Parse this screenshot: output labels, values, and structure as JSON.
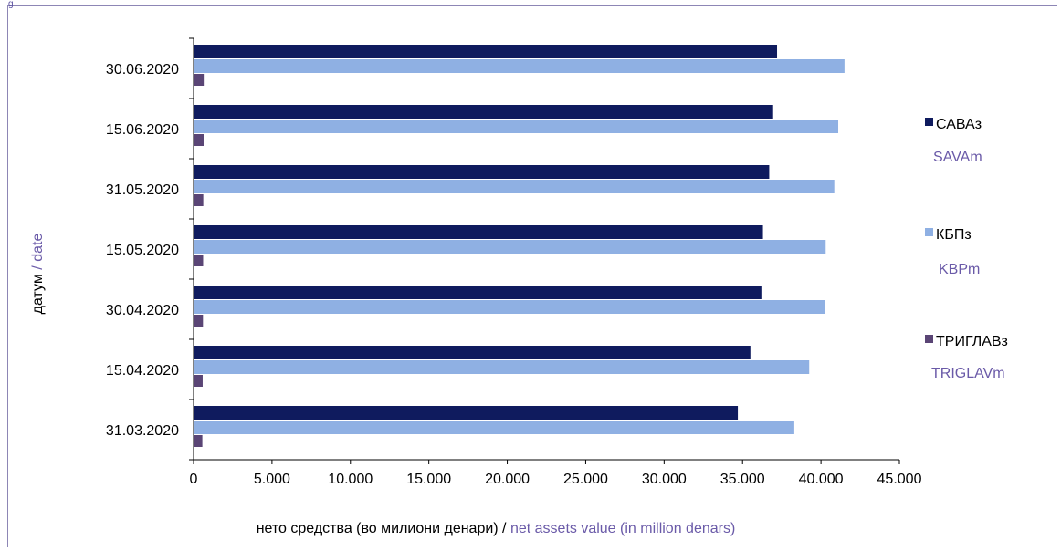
{
  "corner_fragment": "g",
  "chart_data": {
    "type": "bar",
    "orientation": "horizontal",
    "categories": [
      "30.06.2020",
      "15.06.2020",
      "31.05.2020",
      "15.05.2020",
      "30.04.2020",
      "15.04.2020",
      "31.03.2020"
    ],
    "series": [
      {
        "name": "САВАз",
        "name_latin": "SAVAm",
        "color": "#0f1b5e",
        "values": [
          37200,
          36950,
          36700,
          36300,
          36200,
          35500,
          34700
        ]
      },
      {
        "name": "КБПз",
        "name_latin": "KBPm",
        "color": "#8fb0e3",
        "values": [
          41500,
          41100,
          40850,
          40300,
          40250,
          39250,
          38300
        ]
      },
      {
        "name": "ТРИГЛАВз",
        "name_latin": "TRIGLAVm",
        "color": "#5a4575",
        "values": [
          650,
          640,
          620,
          610,
          600,
          580,
          560
        ]
      }
    ],
    "xlim": [
      0,
      45000
    ],
    "x_ticks": [
      "0",
      "5.000",
      "10.000",
      "15.000",
      "20.000",
      "25.000",
      "30.000",
      "35.000",
      "40.000",
      "45.000"
    ],
    "xlabel": "нето средства (во милиони денари)",
    "xlabel_sep": " / ",
    "xlabel_latin": "net assets value (in million denars)",
    "ylabel": "датум",
    "ylabel_sep": " / ",
    "ylabel_latin": "date",
    "legend_position": "right",
    "grid": false
  }
}
